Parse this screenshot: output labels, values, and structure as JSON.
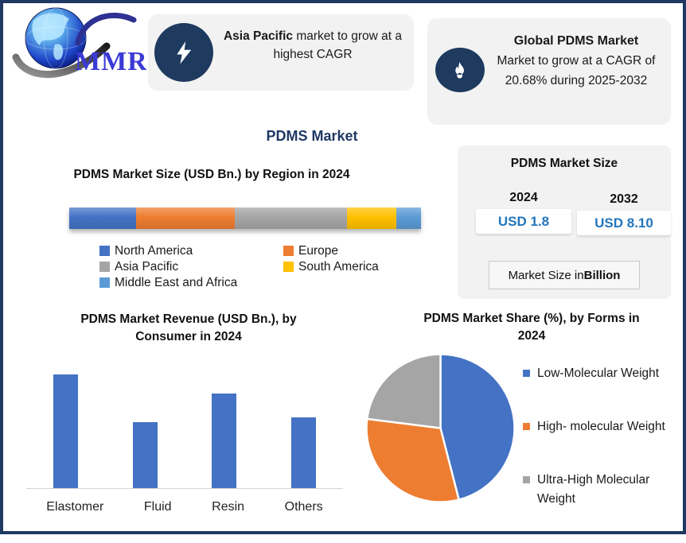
{
  "page": {
    "title": "PDMS Market"
  },
  "logo": {
    "text": "MMR"
  },
  "cards": {
    "asia": {
      "icon": "lightning-bolt-icon",
      "highlight": "Asia Pacific",
      "rest": " market to grow at a highest CAGR"
    },
    "global": {
      "icon": "flame-icon",
      "title": "Global PDMS Market",
      "body": "Market to grow at a CAGR of 20.68% during 2025-2032"
    }
  },
  "market_size_panel": {
    "title": "PDMS Market Size",
    "cols": [
      {
        "year": "2024",
        "value": "USD 1.8"
      },
      {
        "year": "2032",
        "value": "USD 8.10"
      }
    ],
    "footnote_prefix": "Market Size in ",
    "footnote_bold": "Billion"
  },
  "chart_data": [
    {
      "id": "region_stacked_bar",
      "type": "bar",
      "subtype": "stacked-horizontal",
      "title": "PDMS Market Size (USD Bn.) by Region in 2024",
      "units": "share of total bar length (%, estimated from pixels)",
      "series": [
        {
          "name": "North America",
          "value": 19,
          "color": "#4472c4"
        },
        {
          "name": "Europe",
          "value": 28,
          "color": "#ed7d31"
        },
        {
          "name": "Asia Pacific",
          "value": 32,
          "color": "#a5a5a5"
        },
        {
          "name": "South America",
          "value": 14,
          "color": "#ffc000"
        },
        {
          "name": "Middle East and Africa",
          "value": 7,
          "color": "#5b9bd5"
        }
      ],
      "legend_position": "bottom"
    },
    {
      "id": "consumer_bar",
      "type": "bar",
      "title": "PDMS Market Revenue (USD Bn.), by Consumer in 2024",
      "categories": [
        "Elastomer",
        "Fluid",
        "Resin",
        "Others"
      ],
      "values": [
        100,
        58,
        83,
        62
      ],
      "value_note": "relative bar heights; chart shows no y-axis scale",
      "bar_color": "#4472c4",
      "xlabel": "",
      "ylabel": "",
      "grid": false
    },
    {
      "id": "forms_pie",
      "type": "pie",
      "title": "PDMS Market Share (%), by Forms in 2024",
      "labels": [
        "Low-Molecular Weight",
        "High- molecular Weight",
        "Ultra-High Molecular Weight"
      ],
      "values": [
        46,
        31,
        23
      ],
      "colors": [
        "#4472c4",
        "#ed7d31",
        "#a5a5a5"
      ],
      "start_angle_deg": 0,
      "direction": "clockwise",
      "legend_position": "right"
    }
  ],
  "colors": {
    "frame_navy": "#1f3864",
    "card_background": "#f2f2f2",
    "icon_circle_navy": "#1e3a5f",
    "value_blue": "#2176bd",
    "title_navy": "#1f3864"
  }
}
